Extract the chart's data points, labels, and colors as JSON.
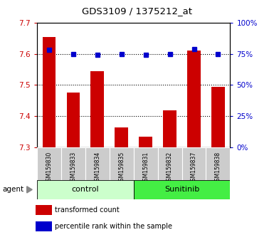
{
  "title": "GDS3109 / 1375212_at",
  "samples": [
    "GSM159830",
    "GSM159833",
    "GSM159834",
    "GSM159835",
    "GSM159831",
    "GSM159832",
    "GSM159837",
    "GSM159838"
  ],
  "bar_values": [
    7.655,
    7.475,
    7.545,
    7.365,
    7.335,
    7.42,
    7.61,
    7.495
  ],
  "percentile_values": [
    78,
    75,
    74,
    75,
    74,
    75,
    79,
    75
  ],
  "ylim_left": [
    7.3,
    7.7
  ],
  "ylim_right": [
    0,
    100
  ],
  "yticks_left": [
    7.3,
    7.4,
    7.5,
    7.6,
    7.7
  ],
  "yticks_right": [
    0,
    25,
    50,
    75,
    100
  ],
  "bar_color": "#cc0000",
  "dot_color": "#0000cc",
  "groups": [
    {
      "label": "control",
      "indices": [
        0,
        1,
        2,
        3
      ],
      "color": "#ccffcc"
    },
    {
      "label": "Sunitinib",
      "indices": [
        4,
        5,
        6,
        7
      ],
      "color": "#44ee44"
    }
  ],
  "agent_label": "agent",
  "legend_bar_label": "transformed count",
  "legend_dot_label": "percentile rank within the sample",
  "yaxis_left_color": "#cc0000",
  "yaxis_right_color": "#0000cc",
  "background_xtick": "#cccccc",
  "grid_yticks": [
    7.4,
    7.5,
    7.6
  ]
}
